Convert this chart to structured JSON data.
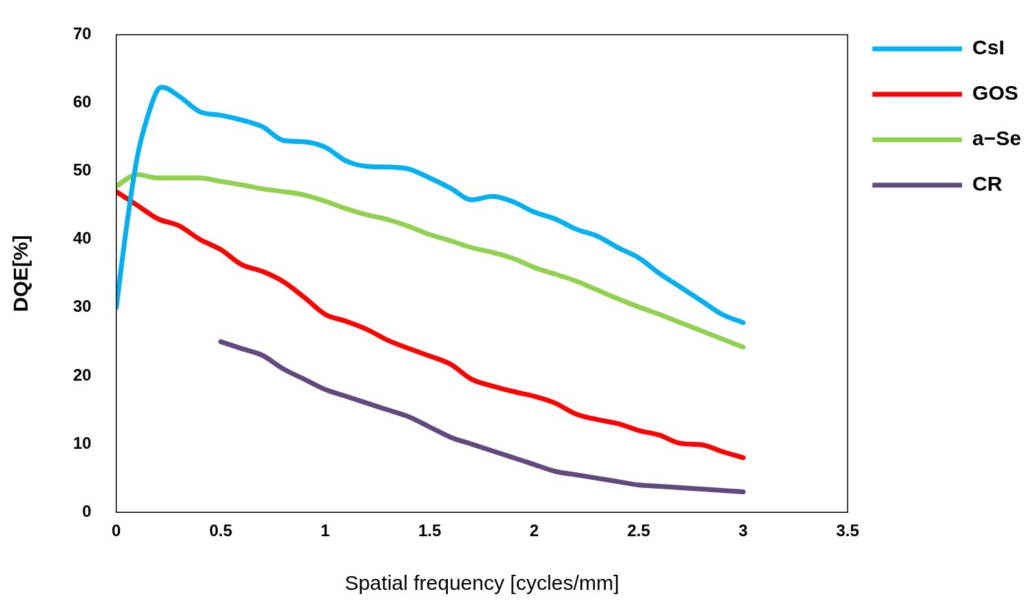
{
  "chart_data": {
    "type": "line",
    "xlabel": "Spatial frequency [cycles/mm]",
    "ylabel": "DQE[%]",
    "xlim": [
      0,
      3.5
    ],
    "xticks": [
      0,
      0.5,
      1,
      1.5,
      2,
      2.5,
      3,
      3.5
    ],
    "ylim": [
      0,
      70
    ],
    "yticks": [
      0,
      10,
      20,
      30,
      40,
      50,
      60,
      70
    ],
    "grid": false,
    "legend": "right",
    "marker": "none",
    "line_style": "solid",
    "series": [
      {
        "name": "CsI",
        "color": "#00b0f0",
        "x": [
          0,
          0.05,
          0.1,
          0.15,
          0.2,
          0.22,
          0.3,
          0.4,
          0.5,
          0.6,
          0.7,
          0.8,
          0.9,
          1,
          1.1,
          1.2,
          1.3,
          1.4,
          1.5,
          1.6,
          1.7,
          1.8,
          1.9,
          2,
          2.1,
          2.2,
          2.3,
          2.4,
          2.5,
          2.6,
          2.7,
          2.8,
          2.9,
          3
        ],
        "values": [
          30,
          42,
          52,
          58,
          62,
          62.3,
          61,
          58.7,
          58.2,
          57.5,
          56.5,
          54.5,
          54.3,
          53.5,
          51.5,
          50.7,
          50.6,
          50.3,
          49,
          47.5,
          45.8,
          46.3,
          45.5,
          44,
          43,
          41.5,
          40.5,
          38.8,
          37.3,
          35,
          33,
          31,
          29,
          27.8
        ]
      },
      {
        "name": "GOS",
        "color": "#ff0000",
        "x": [
          0,
          0.1,
          0.2,
          0.3,
          0.4,
          0.5,
          0.6,
          0.7,
          0.8,
          0.9,
          1,
          1.1,
          1.2,
          1.3,
          1.4,
          1.5,
          1.6,
          1.7,
          1.8,
          1.9,
          2,
          2.1,
          2.2,
          2.3,
          2.4,
          2.5,
          2.6,
          2.7,
          2.8,
          2.9,
          3
        ],
        "values": [
          47,
          45,
          43,
          42,
          40,
          38.5,
          36.3,
          35.3,
          33.8,
          31.5,
          29,
          28,
          26.8,
          25.2,
          24,
          22.9,
          21.7,
          19.5,
          18.5,
          17.7,
          17,
          16,
          14.4,
          13.6,
          13,
          12,
          11.3,
          10.1,
          9.9,
          8.9,
          8
        ]
      },
      {
        "name": "a−Se",
        "color": "#92d050",
        "x": [
          0,
          0.1,
          0.2,
          0.3,
          0.4,
          0.5,
          0.6,
          0.7,
          0.8,
          0.9,
          1,
          1.1,
          1.2,
          1.3,
          1.4,
          1.5,
          1.6,
          1.7,
          1.8,
          1.9,
          2,
          2.1,
          2.2,
          2.3,
          2.4,
          2.5,
          2.6,
          2.7,
          2.8,
          2.9,
          3
        ],
        "values": [
          47.8,
          49.5,
          49,
          49,
          49,
          48.5,
          48,
          47.4,
          47,
          46.5,
          45.6,
          44.5,
          43.6,
          42.9,
          41.9,
          40.7,
          39.8,
          38.8,
          38.1,
          37.2,
          35.9,
          34.9,
          33.9,
          32.6,
          31.3,
          30.1,
          29,
          27.8,
          26.6,
          25.4,
          24.2
        ]
      },
      {
        "name": "CR",
        "color": "#604a7b",
        "x": [
          0.5,
          0.6,
          0.7,
          0.8,
          0.9,
          1,
          1.1,
          1.2,
          1.3,
          1.4,
          1.5,
          1.6,
          1.7,
          1.8,
          1.9,
          2,
          2.1,
          2.2,
          2.3,
          2.4,
          2.5,
          2.6,
          2.7,
          2.8,
          2.9,
          3
        ],
        "values": [
          25,
          24,
          23,
          21,
          19.5,
          18,
          17,
          16,
          15,
          14,
          12.5,
          11,
          10,
          9,
          8,
          7,
          6,
          5.5,
          5,
          4.5,
          4,
          3.8,
          3.6,
          3.4,
          3.2,
          3
        ]
      }
    ]
  }
}
